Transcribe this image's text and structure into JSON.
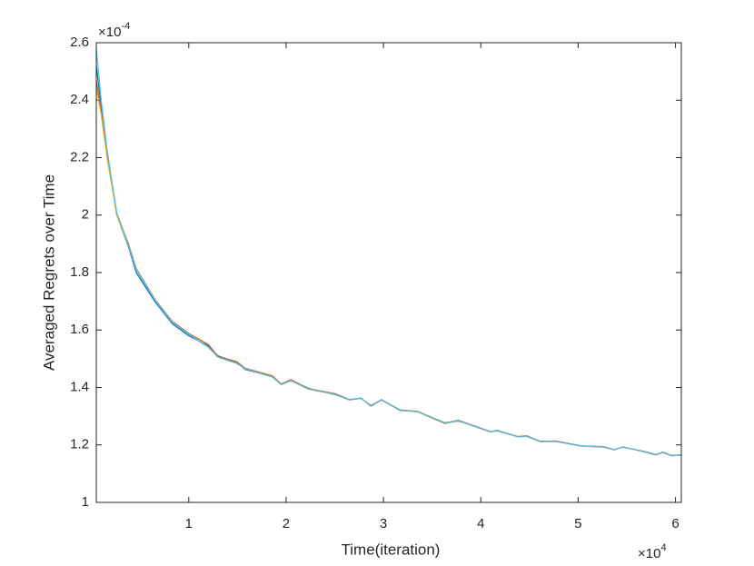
{
  "chart_data": {
    "type": "line",
    "x_label": "Time(iteration)",
    "y_label": "Averaged Regrets over Time",
    "x_multiplier": {
      "base": "×10",
      "exponent": "4"
    },
    "y_multiplier": {
      "base": "×10",
      "exponent": "-4"
    },
    "x": [
      0.05,
      0.1,
      0.16,
      0.2,
      0.26,
      0.38,
      0.46,
      0.65,
      0.83,
      1.0,
      1.2,
      1.3,
      1.49,
      1.58,
      1.86,
      1.95,
      2.05,
      2.23,
      2.51,
      2.65,
      2.77,
      2.87,
      2.98,
      3.17,
      3.35,
      3.63,
      3.77,
      3.96,
      4.1,
      4.17,
      4.38,
      4.47,
      4.61,
      4.77,
      5.03,
      5.26,
      5.37,
      5.46,
      5.67,
      5.8,
      5.87,
      5.96,
      6.06
    ],
    "series": [
      {
        "color": "#0072BD",
        "values": [
          2.52,
          2.38,
          2.22,
          2.13,
          2.0,
          1.89,
          1.8,
          1.7,
          1.622,
          1.58,
          1.545,
          1.51,
          1.488,
          1.462,
          1.438,
          1.412,
          1.425,
          1.397,
          1.374,
          1.357,
          1.362,
          1.337,
          1.356,
          1.322,
          1.316,
          1.277,
          1.283,
          1.263,
          1.246,
          1.249,
          1.229,
          1.231,
          1.213,
          1.213,
          1.197,
          1.193,
          1.184,
          1.192,
          1.178,
          1.166,
          1.175,
          1.163,
          1.166
        ]
      },
      {
        "color": "#D95319",
        "values": [
          2.47,
          2.36,
          2.21,
          2.13,
          2.005,
          1.9,
          1.815,
          1.708,
          1.63,
          1.588,
          1.55,
          1.508,
          1.49,
          1.467,
          1.44,
          1.412,
          1.427,
          1.396,
          1.378,
          1.358,
          1.363,
          1.336,
          1.358,
          1.321,
          1.317,
          1.276,
          1.286,
          1.263,
          1.246,
          1.251,
          1.229,
          1.232,
          1.212,
          1.214,
          1.196,
          1.194,
          1.183,
          1.193,
          1.177,
          1.166,
          1.174,
          1.163,
          1.165
        ]
      },
      {
        "color": "#EDB120",
        "values": [
          2.44,
          2.35,
          2.2,
          2.12,
          2.0,
          1.893,
          1.812,
          1.706,
          1.627,
          1.586,
          1.541,
          1.505,
          1.485,
          1.464,
          1.437,
          1.41,
          1.423,
          1.394,
          1.375,
          1.356,
          1.363,
          1.334,
          1.356,
          1.32,
          1.315,
          1.274,
          1.284,
          1.261,
          1.245,
          1.25,
          1.228,
          1.23,
          1.211,
          1.212,
          1.196,
          1.192,
          1.183,
          1.193,
          1.176,
          1.165,
          1.173,
          1.162,
          1.164
        ]
      },
      {
        "color": "#4DBEEE",
        "values": [
          2.58,
          2.4,
          2.23,
          2.14,
          2.01,
          1.895,
          1.81,
          1.705,
          1.626,
          1.585,
          1.54,
          1.506,
          1.484,
          1.465,
          1.436,
          1.41,
          1.424,
          1.395,
          1.376,
          1.357,
          1.364,
          1.335,
          1.357,
          1.32,
          1.316,
          1.275,
          1.285,
          1.262,
          1.245,
          1.25,
          1.228,
          1.23,
          1.212,
          1.212,
          1.196,
          1.193,
          1.183,
          1.193,
          1.177,
          1.165,
          1.174,
          1.162,
          1.165
        ]
      }
    ],
    "xlim": [
      0.05,
      6.06
    ],
    "xticks": [
      1,
      2,
      3,
      4,
      5,
      6
    ],
    "ylim": [
      1,
      2.6
    ],
    "yticks": [
      1,
      1.2,
      1.4,
      1.6,
      1.8,
      2,
      2.2,
      2.4,
      2.6
    ]
  }
}
